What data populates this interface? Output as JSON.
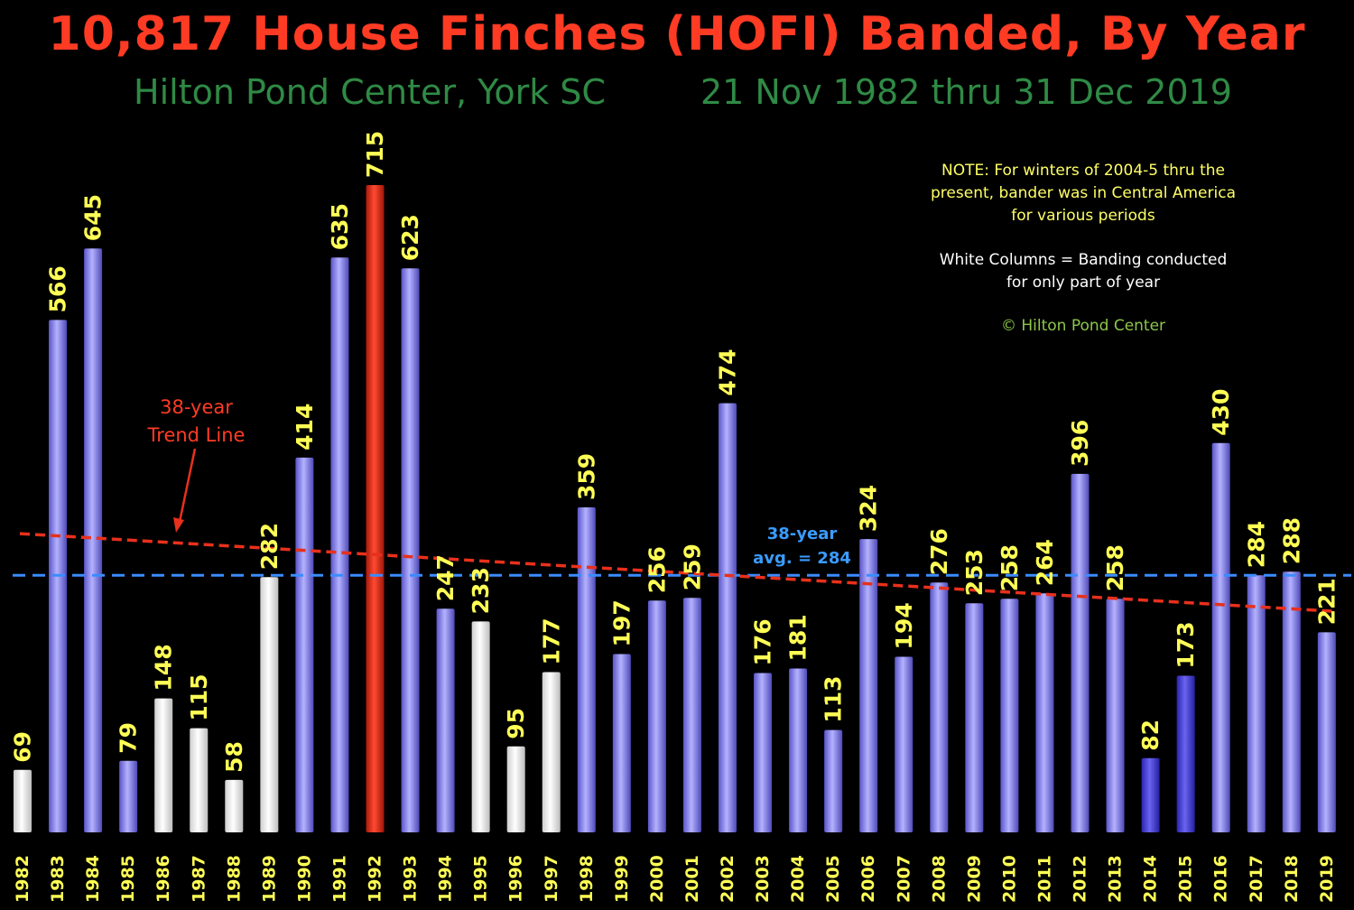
{
  "header": {
    "title": "10,817 House Finches (HOFI) Banded, By Year",
    "subtitle_left": "Hilton Pond Center, York SC",
    "subtitle_right": "21 Nov 1982 thru  31 Dec 2019"
  },
  "notes": {
    "note_line1": "NOTE: For winters of 2004-5 thru the",
    "note_line2": "present, bander was in Central America",
    "note_line3": "for various periods",
    "white_line1": "White Columns = Banding conducted",
    "white_line2": "for only part of year",
    "copyright": "© Hilton Pond Center"
  },
  "annotations": {
    "trend_line1": "38-year",
    "trend_line2": "Trend Line",
    "avg_line1": "38-year",
    "avg_line2": "avg. = 284"
  },
  "colors": {
    "full_year_bar": "#8a86f0",
    "partial_year_bar": "#ffffff",
    "max_bar": "#e8301c",
    "value_label": "#ffff55",
    "year_label": "#ffff55",
    "trend_line": "#e8301c",
    "avg_line": "#3a8cff"
  },
  "chart_data": {
    "type": "bar",
    "categories": [
      "1982",
      "1983",
      "1984",
      "1985",
      "1986",
      "1987",
      "1988",
      "1989",
      "1990",
      "1991",
      "1992",
      "1993",
      "1994",
      "1995",
      "1996",
      "1997",
      "1998",
      "1999",
      "2000",
      "2001",
      "2002",
      "2003",
      "2004",
      "2005",
      "2006",
      "2007",
      "2008",
      "2009",
      "2010",
      "2011",
      "2012",
      "2013",
      "2014",
      "2015",
      "2016",
      "2017",
      "2018",
      "2019"
    ],
    "values": [
      69,
      566,
      645,
      79,
      148,
      115,
      58,
      282,
      414,
      635,
      715,
      623,
      247,
      233,
      95,
      177,
      359,
      197,
      256,
      259,
      474,
      176,
      181,
      113,
      324,
      194,
      276,
      253,
      258,
      264,
      396,
      258,
      82,
      173,
      430,
      284,
      288,
      221
    ],
    "bar_kind": [
      "partial",
      "full",
      "full",
      "full",
      "partial",
      "partial",
      "partial",
      "partial",
      "full",
      "full",
      "max",
      "full",
      "full",
      "partial",
      "partial",
      "partial",
      "full",
      "full",
      "full",
      "full",
      "full",
      "full",
      "full",
      "full",
      "full",
      "full",
      "full",
      "full",
      "full",
      "full",
      "full",
      "full",
      "dark",
      "dark",
      "full",
      "full",
      "full",
      "full"
    ],
    "average": 284,
    "trend_line": {
      "start_value": 330,
      "end_value": 244
    },
    "ylim": [
      0,
      800
    ],
    "title": "10,817 House Finches (HOFI) Banded, By Year",
    "xlabel": "",
    "ylabel": ""
  }
}
